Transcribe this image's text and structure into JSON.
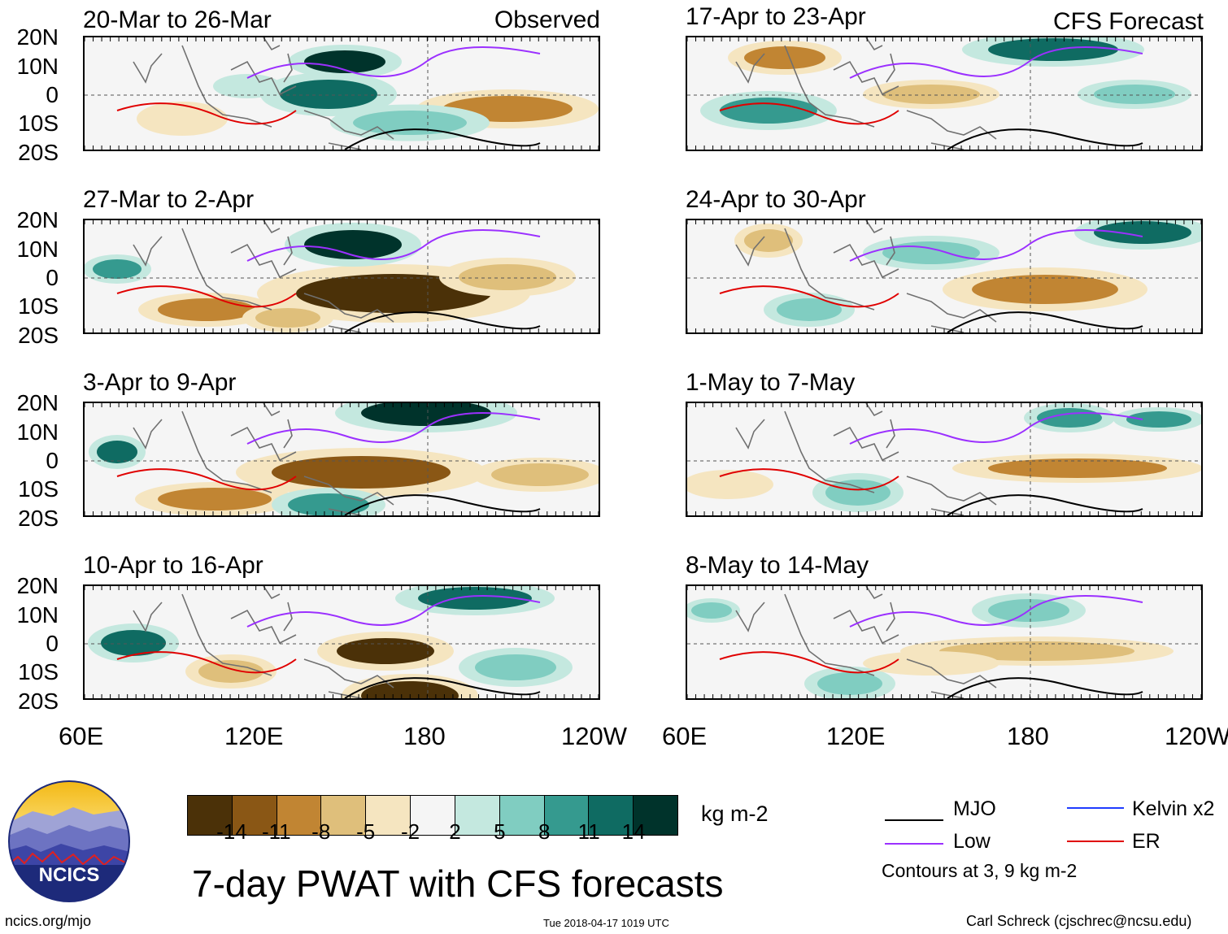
{
  "observed_label": "Observed",
  "forecast_label": "CFS Forecast",
  "lat_labels": [
    "20N",
    "10N",
    "0",
    "10S",
    "20S"
  ],
  "lon_labels": [
    "60E",
    "120E",
    "180",
    "120W"
  ],
  "panels": [
    {
      "title": "20-Mar to 26-Mar",
      "type": "observed"
    },
    {
      "title": "27-Mar to 2-Apr",
      "type": "observed"
    },
    {
      "title": "3-Apr to 9-Apr",
      "type": "observed"
    },
    {
      "title": "10-Apr to 16-Apr",
      "type": "observed"
    },
    {
      "title": "17-Apr to 23-Apr",
      "type": "forecast"
    },
    {
      "title": "24-Apr to 30-Apr",
      "type": "forecast"
    },
    {
      "title": "1-May to 7-May",
      "type": "forecast"
    },
    {
      "title": "8-May to 14-May",
      "type": "forecast"
    }
  ],
  "colorbar": {
    "colors": [
      "#4b3108",
      "#8a5715",
      "#c18533",
      "#dfbf7b",
      "#f5e5c0",
      "#f5f5f5",
      "#c4e8df",
      "#80cdc1",
      "#359a8f",
      "#0f6b62",
      "#00332b"
    ],
    "labels": [
      "-14",
      "-11",
      "-8",
      "-5",
      "-2",
      "2",
      "5",
      "8",
      "11",
      "14"
    ],
    "units": "kg m-2"
  },
  "legend": {
    "items": [
      {
        "label": "MJO",
        "color": "#000000"
      },
      {
        "label": "Kelvin x2",
        "color": "#1f3cff"
      },
      {
        "label": "Low",
        "color": "#9b30ff"
      },
      {
        "label": "ER",
        "color": "#e00000"
      }
    ],
    "contour_note": "Contours at 3, 9 kg m-2"
  },
  "logo": {
    "text": "NCICS"
  },
  "main_title": "7-day PWAT with CFS forecasts",
  "footer": {
    "url": "ncics.org/mjo",
    "timestamp": "Tue 2018-04-17 1019 UTC",
    "credit": "Carl Schreck (cjschrec@ncsu.edu)"
  }
}
